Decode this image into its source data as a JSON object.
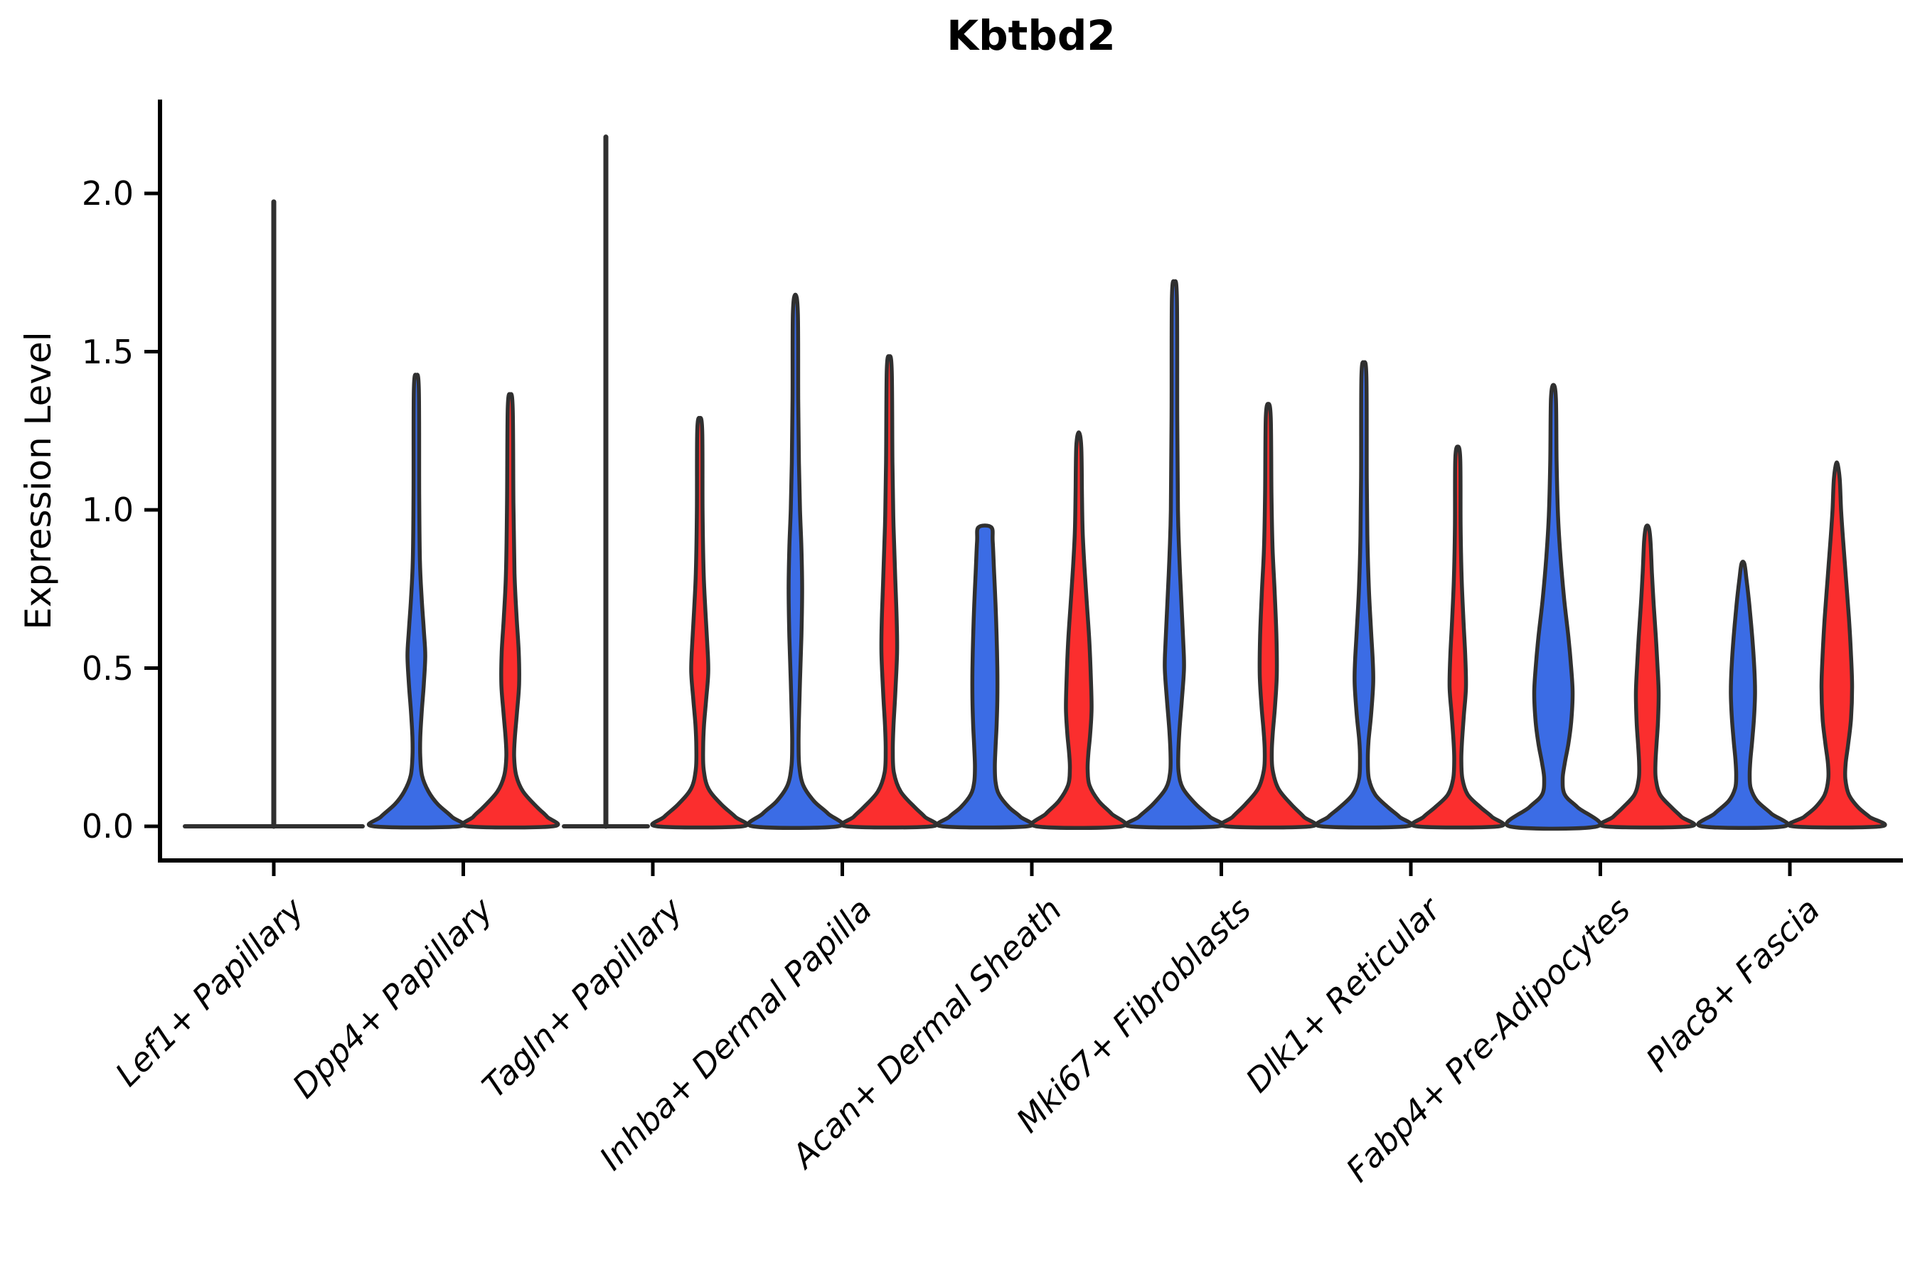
{
  "chart_data": {
    "type": "violin",
    "title": "Kbtbd2",
    "ylabel": "Expression Level",
    "xlabel": "",
    "grid": false,
    "legend_position": "none",
    "y_tick_labels": [
      "0.0",
      "0.5",
      "1.0",
      "1.5",
      "2.0"
    ],
    "y_tick_values": [
      0.0,
      0.5,
      1.0,
      1.5,
      2.0
    ],
    "ylim": [
      -0.11,
      2.3
    ],
    "categories": [
      "Lef1+ Papillary",
      "Dpp4+ Papillary",
      "Tagln+ Papillary",
      "Inhba+ Dermal Papilla",
      "Acan+ Dermal Sheath",
      "Mki67+ Fibroblasts",
      "Dlk1+ Reticular",
      "Fabp4+ Pre-Adipocytes",
      "Plac8+ Fascia"
    ],
    "groups": [
      {
        "name": "blue",
        "color": "#3B6CE5"
      },
      {
        "name": "red",
        "color": "#FB2E2E"
      }
    ],
    "outline_color": "#303030",
    "axis_color": "#000000",
    "violins": [
      {
        "category_index": 0,
        "category": "Lef1+ Papillary",
        "group": "collapsed-pair",
        "style": "flat",
        "center_offset": 0,
        "flat_halfwidth": 125,
        "max": 1.98,
        "peak": 0.0
      },
      {
        "category_index": 1,
        "category": "Dpp4+ Papillary",
        "group": "blue",
        "style": "kde",
        "center_offset": -66,
        "max": 1.425,
        "peak": 0.54,
        "profile": [
          [
            1.425,
            0
          ],
          [
            1.38,
            3.5
          ],
          [
            1.05,
            4
          ],
          [
            0.84,
            5
          ],
          [
            0.72,
            7.5
          ],
          [
            0.62,
            10.5
          ],
          [
            0.54,
            12.5
          ],
          [
            0.45,
            10.5
          ],
          [
            0.36,
            7.5
          ],
          [
            0.28,
            5.5
          ],
          [
            0.22,
            5.5
          ],
          [
            0.16,
            8
          ],
          [
            0.11,
            17
          ],
          [
            0.07,
            30
          ],
          [
            0.03,
            50
          ],
          [
            0,
            60
          ]
        ]
      },
      {
        "category_index": 1,
        "category": "Dpp4+ Papillary",
        "group": "red",
        "style": "kde",
        "center_offset": 66,
        "max": 1.365,
        "peak": 0.45,
        "profile": [
          [
            1.365,
            0
          ],
          [
            1.32,
            3.5
          ],
          [
            1.02,
            4.5
          ],
          [
            0.8,
            6
          ],
          [
            0.66,
            9
          ],
          [
            0.55,
            12
          ],
          [
            0.45,
            12.5
          ],
          [
            0.36,
            9.5
          ],
          [
            0.28,
            6.5
          ],
          [
            0.22,
            5.5
          ],
          [
            0.16,
            8.5
          ],
          [
            0.11,
            18
          ],
          [
            0.06,
            38
          ],
          [
            0.03,
            52
          ],
          [
            0,
            60
          ]
        ]
      },
      {
        "category_index": 2,
        "category": "Tagln+ Papillary",
        "group": "blue",
        "style": "flat",
        "center_offset": -66,
        "flat_halfwidth": 59,
        "max": 2.185,
        "peak": 0.0
      },
      {
        "category_index": 2,
        "category": "Tagln+ Papillary",
        "group": "red",
        "style": "kde",
        "center_offset": 66,
        "max": 1.29,
        "peak": 0.49,
        "profile": [
          [
            1.29,
            0
          ],
          [
            1.25,
            3.5
          ],
          [
            1.0,
            4
          ],
          [
            0.8,
            5.5
          ],
          [
            0.68,
            8
          ],
          [
            0.58,
            10.5
          ],
          [
            0.49,
            12
          ],
          [
            0.4,
            9
          ],
          [
            0.32,
            6
          ],
          [
            0.25,
            4.8
          ],
          [
            0.18,
            5.5
          ],
          [
            0.12,
            12
          ],
          [
            0.07,
            30
          ],
          [
            0.03,
            50
          ],
          [
            0,
            60
          ]
        ]
      },
      {
        "category_index": 3,
        "category": "Inhba+ Dermal Papilla",
        "group": "blue",
        "style": "kde",
        "center_offset": -66,
        "max": 1.68,
        "peak": 0.75,
        "profile": [
          [
            1.68,
            0
          ],
          [
            1.62,
            3.5
          ],
          [
            1.35,
            4
          ],
          [
            1.15,
            5
          ],
          [
            1.0,
            6.5
          ],
          [
            0.88,
            8.5
          ],
          [
            0.75,
            9.5
          ],
          [
            0.6,
            8.5
          ],
          [
            0.46,
            6.5
          ],
          [
            0.34,
            5
          ],
          [
            0.26,
            4.5
          ],
          [
            0.19,
            5.5
          ],
          [
            0.13,
            11
          ],
          [
            0.08,
            26
          ],
          [
            0.04,
            46
          ],
          [
            0,
            60
          ]
        ]
      },
      {
        "category_index": 3,
        "category": "Inhba+ Dermal Papilla",
        "group": "red",
        "style": "kde",
        "center_offset": 66,
        "max": 1.485,
        "peak": 0.55,
        "profile": [
          [
            1.485,
            0
          ],
          [
            1.44,
            3.5
          ],
          [
            1.15,
            4.5
          ],
          [
            0.95,
            6
          ],
          [
            0.78,
            8.5
          ],
          [
            0.65,
            10.5
          ],
          [
            0.55,
            11
          ],
          [
            0.42,
            8.5
          ],
          [
            0.32,
            6
          ],
          [
            0.24,
            5
          ],
          [
            0.17,
            6.5
          ],
          [
            0.11,
            16
          ],
          [
            0.06,
            36
          ],
          [
            0.03,
            50
          ],
          [
            0,
            60
          ]
        ]
      },
      {
        "category_index": 4,
        "category": "Acan+ Dermal Sheath",
        "group": "blue",
        "style": "kde",
        "flat_top": true,
        "center_offset": -66,
        "max": 0.945,
        "peak": 0.45,
        "profile": [
          [
            0.945,
            9
          ],
          [
            0.9,
            11
          ],
          [
            0.8,
            13
          ],
          [
            0.7,
            15
          ],
          [
            0.6,
            16.5
          ],
          [
            0.5,
            17.5
          ],
          [
            0.4,
            17.5
          ],
          [
            0.32,
            16.5
          ],
          [
            0.25,
            15
          ],
          [
            0.19,
            14
          ],
          [
            0.14,
            15
          ],
          [
            0.1,
            20
          ],
          [
            0.06,
            34
          ],
          [
            0.03,
            50
          ],
          [
            0,
            60
          ]
        ]
      },
      {
        "category_index": 4,
        "category": "Acan+ Dermal Sheath",
        "group": "red",
        "style": "kde",
        "center_offset": 66,
        "max": 1.245,
        "peak": 0.37,
        "profile": [
          [
            1.245,
            0
          ],
          [
            1.2,
            3.5
          ],
          [
            1.05,
            4.5
          ],
          [
            0.93,
            5.5
          ],
          [
            0.82,
            8
          ],
          [
            0.7,
            11.5
          ],
          [
            0.58,
            15
          ],
          [
            0.47,
            17
          ],
          [
            0.37,
            18
          ],
          [
            0.29,
            16
          ],
          [
            0.23,
            13.5
          ],
          [
            0.18,
            12.5
          ],
          [
            0.13,
            15
          ],
          [
            0.08,
            28
          ],
          [
            0.04,
            46
          ],
          [
            0,
            60
          ]
        ]
      },
      {
        "category_index": 5,
        "category": "Mki67+ Fibroblasts",
        "group": "blue",
        "style": "kde",
        "center_offset": -66,
        "max": 1.72,
        "peak": 0.5,
        "profile": [
          [
            1.72,
            0
          ],
          [
            1.67,
            3.5
          ],
          [
            1.3,
            4
          ],
          [
            1.0,
            5
          ],
          [
            0.85,
            7
          ],
          [
            0.7,
            10
          ],
          [
            0.58,
            12.5
          ],
          [
            0.5,
            13.5
          ],
          [
            0.4,
            10.5
          ],
          [
            0.3,
            7
          ],
          [
            0.23,
            5.5
          ],
          [
            0.17,
            6
          ],
          [
            0.12,
            12
          ],
          [
            0.07,
            30
          ],
          [
            0.03,
            50
          ],
          [
            0,
            62
          ]
        ]
      },
      {
        "category_index": 5,
        "category": "Mki67+ Fibroblasts",
        "group": "red",
        "style": "kde",
        "center_offset": 66,
        "max": 1.335,
        "peak": 0.48,
        "profile": [
          [
            1.335,
            0
          ],
          [
            1.29,
            3.5
          ],
          [
            1.05,
            4.5
          ],
          [
            0.88,
            6
          ],
          [
            0.74,
            9
          ],
          [
            0.6,
            11.5
          ],
          [
            0.48,
            12
          ],
          [
            0.38,
            9.5
          ],
          [
            0.3,
            6.5
          ],
          [
            0.24,
            5
          ],
          [
            0.18,
            6
          ],
          [
            0.12,
            14
          ],
          [
            0.07,
            32
          ],
          [
            0.03,
            50
          ],
          [
            0,
            60
          ]
        ]
      },
      {
        "category_index": 6,
        "category": "Dlk1+ Reticular",
        "group": "blue",
        "style": "kde",
        "center_offset": -66,
        "max": 1.465,
        "peak": 0.45,
        "profile": [
          [
            1.465,
            0
          ],
          [
            1.42,
            3.5
          ],
          [
            1.1,
            4
          ],
          [
            0.9,
            5
          ],
          [
            0.75,
            7
          ],
          [
            0.62,
            10
          ],
          [
            0.52,
            12.5
          ],
          [
            0.45,
            13
          ],
          [
            0.35,
            10
          ],
          [
            0.27,
            6.5
          ],
          [
            0.21,
            5.5
          ],
          [
            0.15,
            7
          ],
          [
            0.1,
            16
          ],
          [
            0.06,
            34
          ],
          [
            0.03,
            50
          ],
          [
            0,
            60
          ]
        ]
      },
      {
        "category_index": 6,
        "category": "Dlk1+ Reticular",
        "group": "red",
        "style": "kde",
        "center_offset": 66,
        "max": 1.2,
        "peak": 0.44,
        "profile": [
          [
            1.2,
            0
          ],
          [
            1.16,
            3.5
          ],
          [
            0.95,
            4
          ],
          [
            0.78,
            5.5
          ],
          [
            0.65,
            8
          ],
          [
            0.54,
            10.5
          ],
          [
            0.44,
            11.5
          ],
          [
            0.35,
            8.5
          ],
          [
            0.27,
            6
          ],
          [
            0.21,
            5
          ],
          [
            0.15,
            6.5
          ],
          [
            0.1,
            14
          ],
          [
            0.06,
            32
          ],
          [
            0.03,
            48
          ],
          [
            0,
            58
          ]
        ]
      },
      {
        "category_index": 7,
        "category": "Fabp4+ Pre-Adipocytes",
        "group": "blue",
        "style": "kde",
        "center_offset": -66,
        "max": 1.395,
        "peak": 0.42,
        "profile": [
          [
            1.395,
            0
          ],
          [
            1.35,
            3.5
          ],
          [
            1.15,
            4.5
          ],
          [
            0.98,
            6.5
          ],
          [
            0.85,
            10
          ],
          [
            0.72,
            15
          ],
          [
            0.6,
            21
          ],
          [
            0.5,
            25
          ],
          [
            0.42,
            27
          ],
          [
            0.33,
            25
          ],
          [
            0.26,
            21
          ],
          [
            0.2,
            16
          ],
          [
            0.15,
            13
          ],
          [
            0.1,
            16
          ],
          [
            0.06,
            34
          ],
          [
            0,
            62
          ]
        ]
      },
      {
        "category_index": 7,
        "category": "Fabp4+ Pre-Adipocytes",
        "group": "red",
        "style": "kde",
        "center_offset": 66,
        "max": 0.945,
        "peak": 0.42,
        "profile": [
          [
            0.945,
            2
          ],
          [
            0.9,
            4.5
          ],
          [
            0.8,
            6.5
          ],
          [
            0.7,
            9
          ],
          [
            0.6,
            12
          ],
          [
            0.5,
            14.5
          ],
          [
            0.42,
            16
          ],
          [
            0.33,
            15
          ],
          [
            0.26,
            13
          ],
          [
            0.2,
            11.5
          ],
          [
            0.15,
            12
          ],
          [
            0.1,
            18
          ],
          [
            0.06,
            34
          ],
          [
            0.03,
            48
          ],
          [
            0,
            60
          ]
        ]
      },
      {
        "category_index": 8,
        "category": "Plac8+ Fascia",
        "group": "blue",
        "style": "kde",
        "center_offset": -66,
        "max": 0.83,
        "peak": 0.42,
        "profile": [
          [
            0.83,
            2
          ],
          [
            0.78,
            5
          ],
          [
            0.7,
            9
          ],
          [
            0.6,
            13
          ],
          [
            0.5,
            16
          ],
          [
            0.42,
            17
          ],
          [
            0.34,
            15.5
          ],
          [
            0.27,
            13
          ],
          [
            0.21,
            10.5
          ],
          [
            0.16,
            9.5
          ],
          [
            0.12,
            11
          ],
          [
            0.08,
            20
          ],
          [
            0.04,
            40
          ],
          [
            0,
            58
          ]
        ]
      },
      {
        "category_index": 8,
        "category": "Plac8+ Fascia",
        "group": "red",
        "style": "kde",
        "center_offset": 66,
        "max": 1.15,
        "peak": 0.44,
        "profile": [
          [
            1.15,
            0
          ],
          [
            1.1,
            4
          ],
          [
            1.0,
            6
          ],
          [
            0.9,
            9
          ],
          [
            0.78,
            13
          ],
          [
            0.66,
            17
          ],
          [
            0.54,
            20
          ],
          [
            0.44,
            21.5
          ],
          [
            0.34,
            20
          ],
          [
            0.26,
            16
          ],
          [
            0.2,
            12.5
          ],
          [
            0.15,
            12
          ],
          [
            0.1,
            17
          ],
          [
            0.06,
            30
          ],
          [
            0.03,
            46
          ],
          [
            0,
            62
          ]
        ]
      }
    ]
  }
}
